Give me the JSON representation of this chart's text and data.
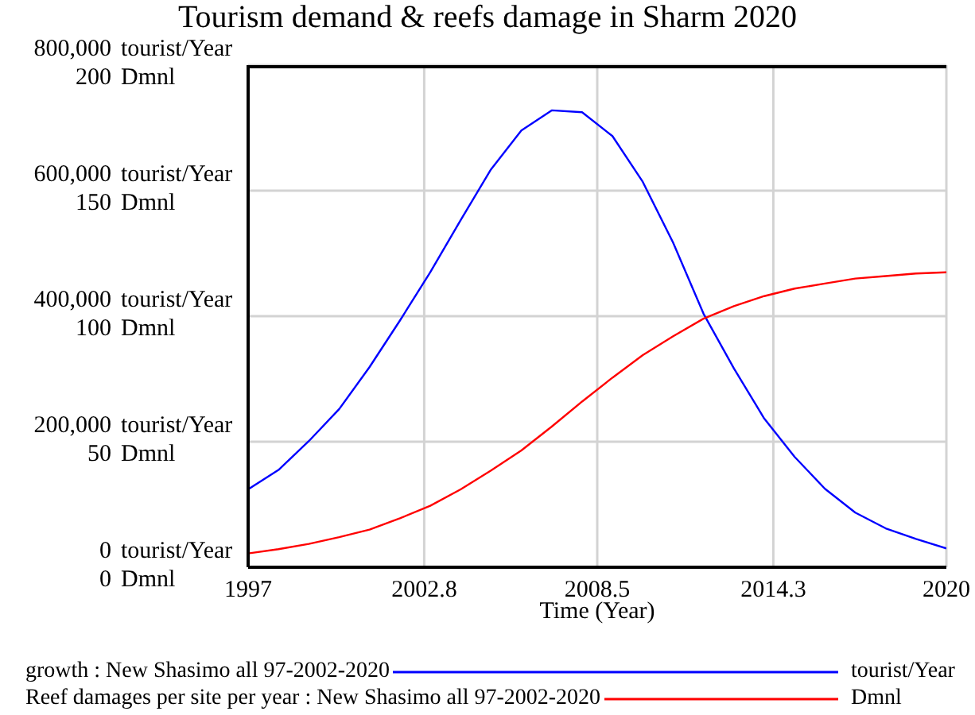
{
  "chart_data": {
    "type": "line",
    "title": "Tourism demand & reefs damage in Sharm 2020",
    "xlabel": "Time (Year)",
    "annotations": [
      "tourist/Year",
      "Dmnl"
    ],
    "x": [
      1997,
      1998,
      1999,
      2000,
      2001,
      2002,
      2003,
      2004,
      2005,
      2006,
      2007,
      2008,
      2009,
      2010,
      2011,
      2012,
      2013,
      2014,
      2015,
      2016,
      2017,
      2018,
      2019,
      2020
    ],
    "series": [
      {
        "name": "growth : New Shasimo all 97-2002-2020",
        "color": "#0000ff",
        "values": [
          124000,
          155000,
          201000,
          252000,
          319000,
          393000,
          470000,
          553000,
          634000,
          696000,
          728000,
          725000,
          687000,
          614000,
          517000,
          404000,
          317000,
          237000,
          176000,
          125000,
          87000,
          62000,
          45000,
          30000
        ]
      },
      {
        "name": "Reef damages per site per year : New Shasimo all 97-2002-2020",
        "color": "#ff0000",
        "axis": "y2",
        "values": [
          5.5,
          7.2,
          9.3,
          12,
          15,
          19.5,
          24.5,
          31,
          38.5,
          46.5,
          56,
          66,
          75.5,
          84.5,
          92,
          99,
          104,
          108,
          111,
          113,
          115,
          116,
          117,
          117.5
        ]
      }
    ],
    "xlim": [
      1997,
      2020
    ],
    "xticks": [
      1997,
      2002.8,
      2008.5,
      2014.3,
      2020
    ],
    "ylim": [
      0,
      800000
    ],
    "yticks": [
      {
        "value": 0,
        "label": "0 tourist/Year"
      },
      {
        "value": 200000,
        "label": "200,000 tourist/Year"
      },
      {
        "value": 400000,
        "label": "400,000 tourist/Year"
      },
      {
        "value": 600000,
        "label": "600,000 tourist/Year"
      },
      {
        "value": 800000,
        "label": "800,000 tourist/Year"
      }
    ],
    "y2lim": [
      0,
      200
    ],
    "y2ticks": [
      {
        "value": 0,
        "label": "0 Dmnl"
      },
      {
        "value": 50,
        "label": "50 Dmnl"
      },
      {
        "value": 100,
        "label": "100 Dmnl"
      },
      {
        "value": 150,
        "label": "150 Dmnl"
      },
      {
        "value": 200,
        "label": "200 Dmnl"
      }
    ],
    "grid": true,
    "legend": "bottom",
    "marker": "none",
    "line_style": "solid"
  }
}
